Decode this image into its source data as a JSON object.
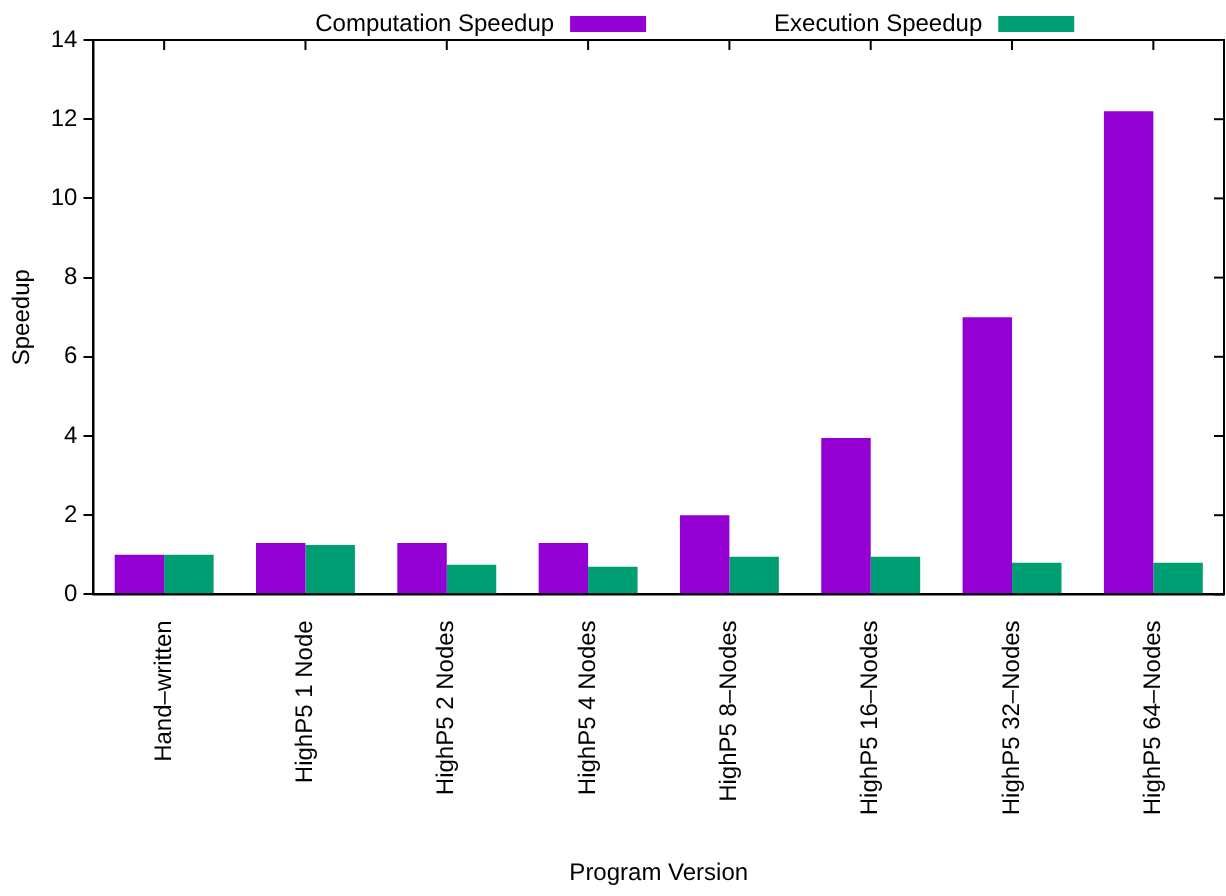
{
  "chart_data": {
    "type": "bar",
    "xlabel": "Program Version",
    "ylabel": "Speedup",
    "categories": [
      "Hand–written",
      "HighP5 1 Node",
      "HighP5 2 Nodes",
      "HighP5 4 Nodes",
      "HighP5 8–Nodes",
      "HighP5 16–Nodes",
      "HighP5 32–Nodes",
      "HighP5 64–Nodes"
    ],
    "series": [
      {
        "name": "Computation Speedup",
        "color": "#9400d3",
        "values": [
          1.0,
          1.3,
          1.3,
          1.3,
          2.0,
          3.95,
          7.0,
          12.2
        ]
      },
      {
        "name": "Execution Speedup",
        "color": "#009e73",
        "values": [
          1.0,
          1.25,
          0.75,
          0.7,
          0.95,
          0.95,
          0.8,
          0.8
        ]
      }
    ],
    "ylim": [
      0,
      14
    ],
    "yticks": [
      0,
      2,
      4,
      6,
      8,
      10,
      12,
      14
    ],
    "grid": false,
    "legend": "top"
  }
}
